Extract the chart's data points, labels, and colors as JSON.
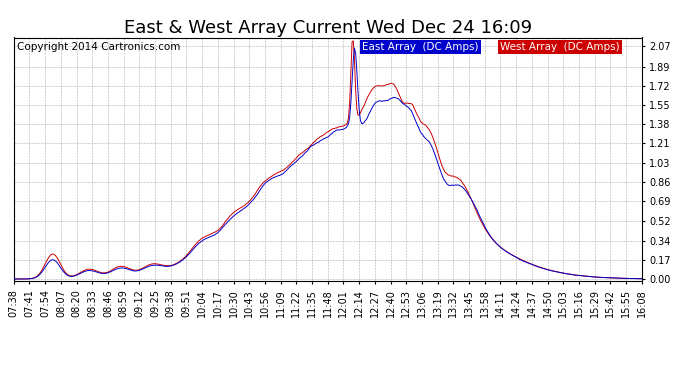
{
  "title": "East & West Array Current Wed Dec 24 16:09",
  "copyright": "Copyright 2014 Cartronics.com",
  "legend_east": "East Array  (DC Amps)",
  "legend_west": "West Array  (DC Amps)",
  "east_color": "#0000cc",
  "west_color": "#cc0000",
  "background_color": "#ffffff",
  "grid_color": "#999999",
  "yticks": [
    0.0,
    0.17,
    0.34,
    0.52,
    0.69,
    0.86,
    1.03,
    1.21,
    1.38,
    1.55,
    1.72,
    1.89,
    2.07
  ],
  "ylim": [
    -0.02,
    2.15
  ],
  "xtick_labels": [
    "07:38",
    "07:41",
    "07:54",
    "08:07",
    "08:20",
    "08:33",
    "08:46",
    "08:59",
    "09:12",
    "09:25",
    "09:38",
    "09:51",
    "10:04",
    "10:17",
    "10:30",
    "10:43",
    "10:56",
    "11:09",
    "11:22",
    "11:35",
    "11:48",
    "12:01",
    "12:14",
    "12:27",
    "12:40",
    "12:53",
    "13:06",
    "13:19",
    "13:32",
    "13:45",
    "13:58",
    "14:11",
    "14:24",
    "14:37",
    "14:50",
    "15:03",
    "15:16",
    "15:29",
    "15:42",
    "15:55",
    "16:08"
  ],
  "title_fontsize": 13,
  "copyright_fontsize": 7.5,
  "legend_fontsize": 7.5,
  "tick_fontsize": 7
}
